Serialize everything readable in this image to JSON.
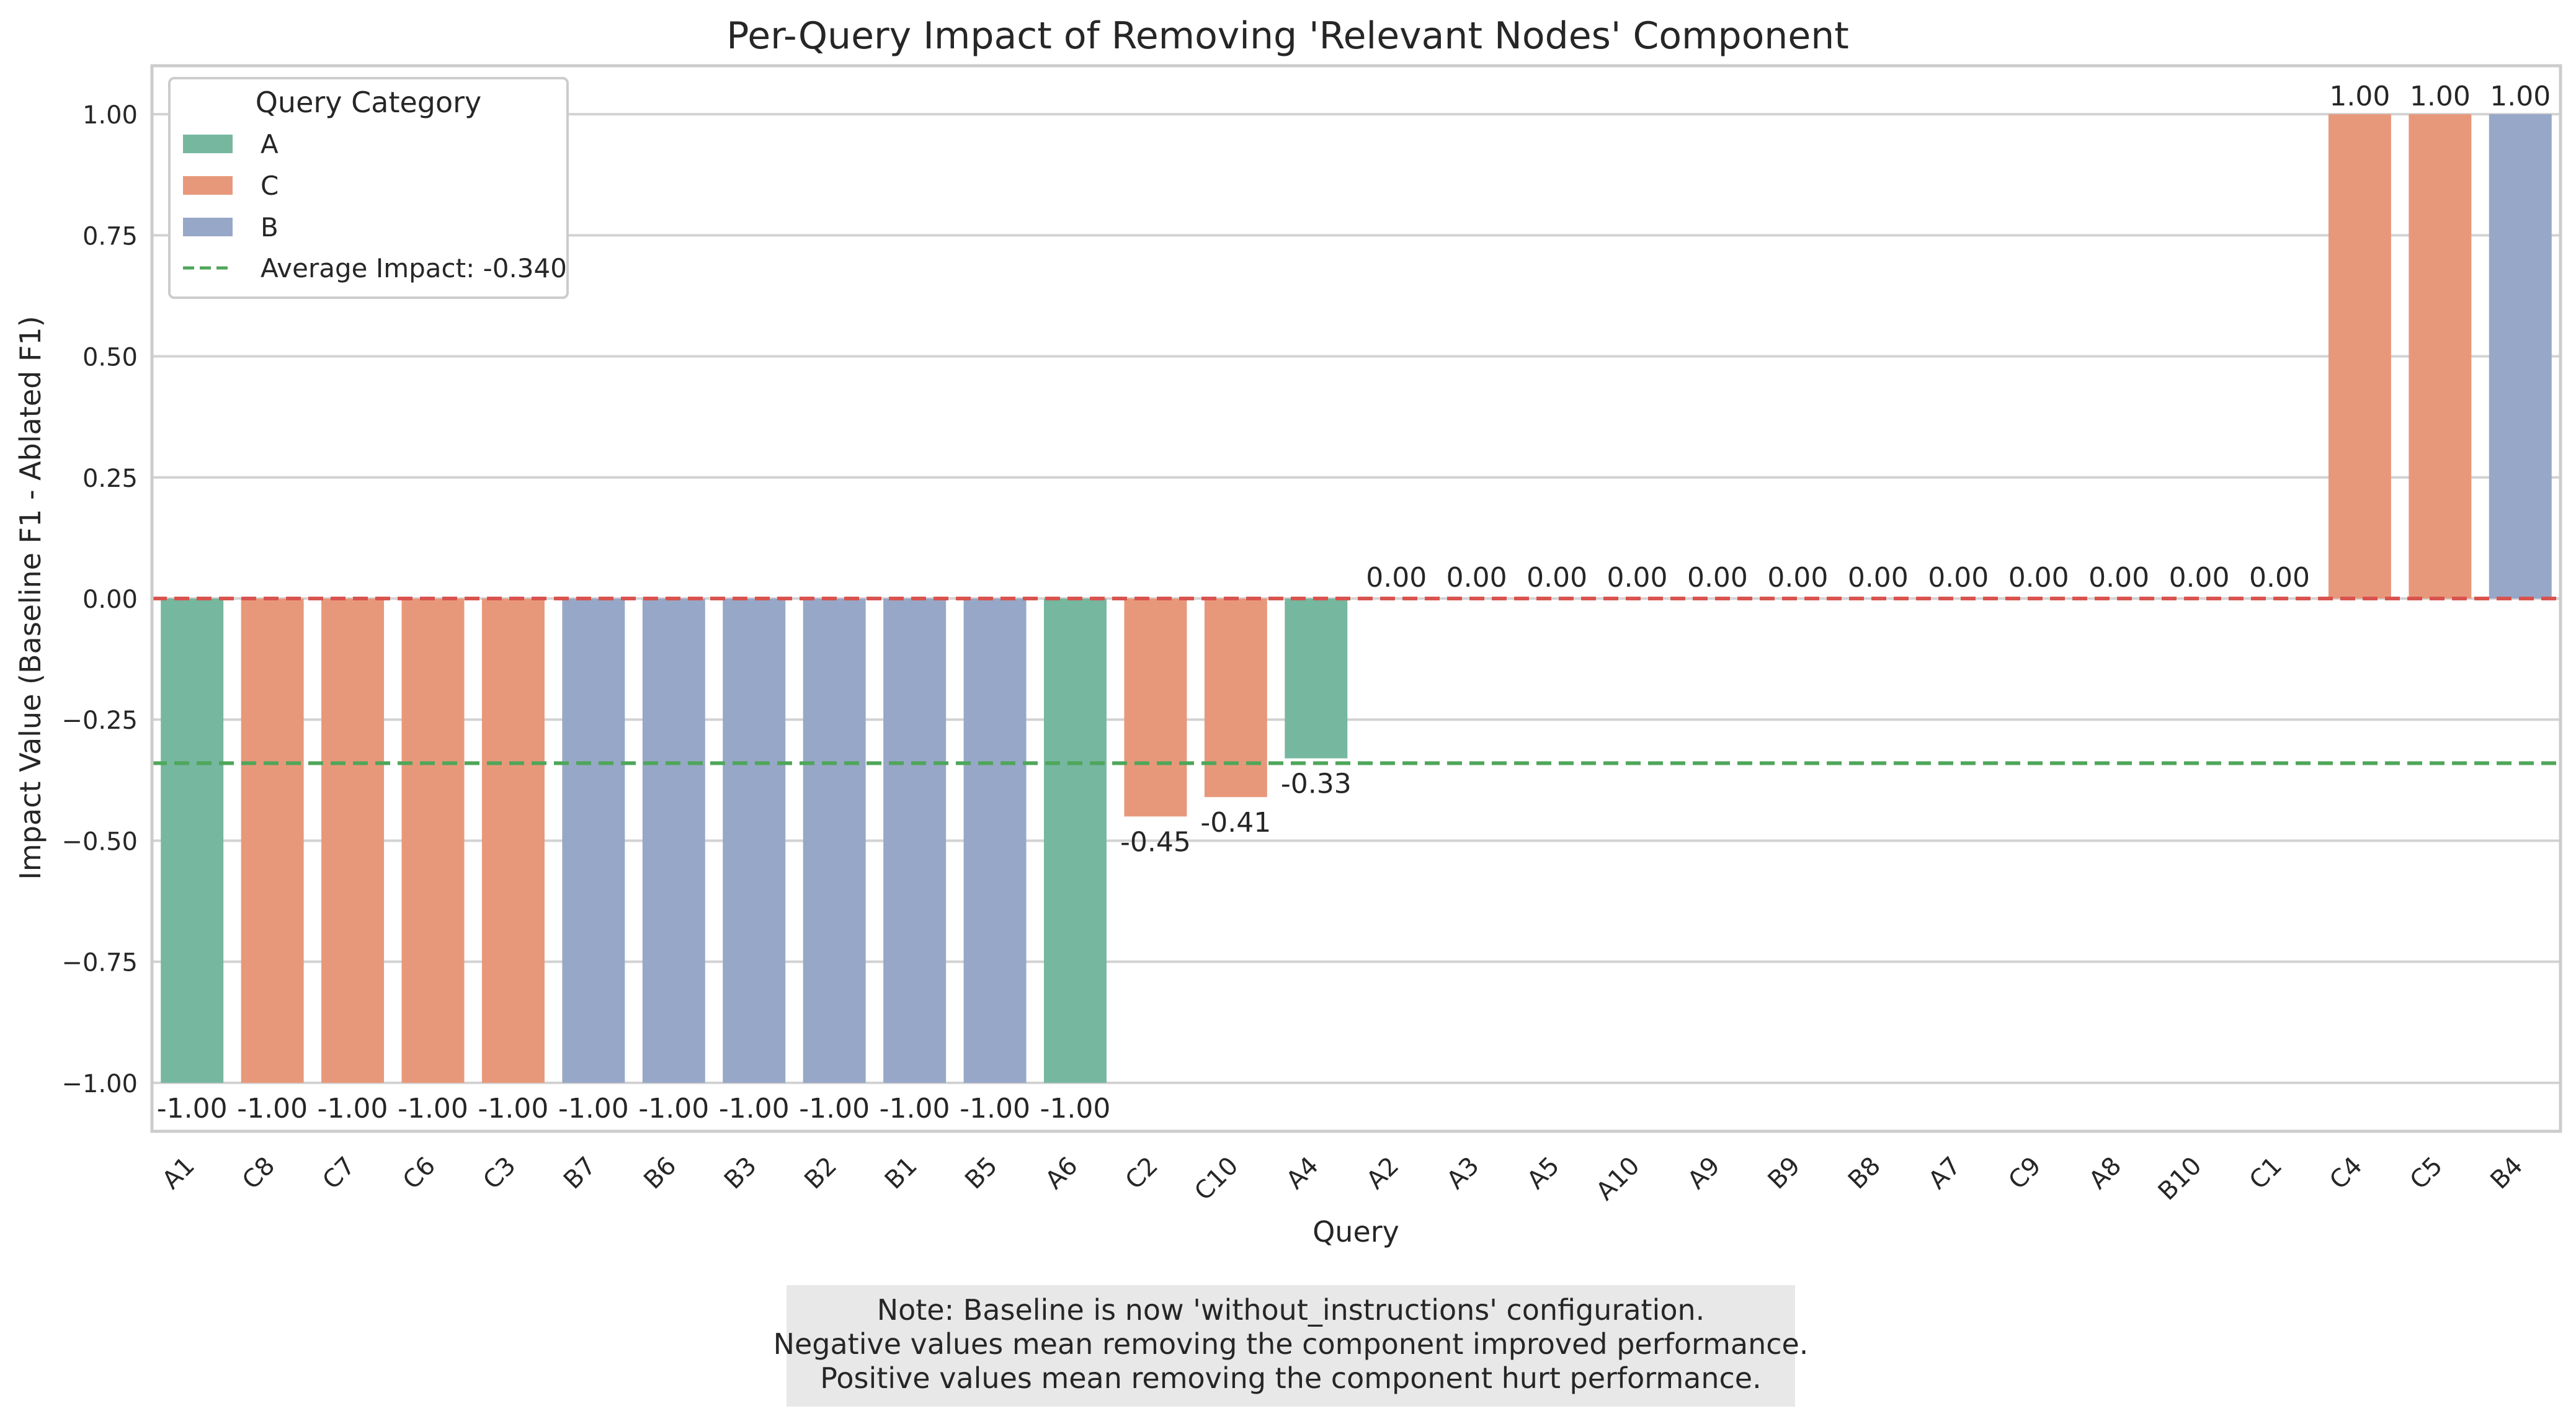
{
  "chart_data": {
    "type": "bar",
    "title": "Per-Query Impact of Removing 'Relevant Nodes' Component",
    "xlabel": "Query",
    "ylabel": "Impact Value (Baseline F1 - Ablated F1)",
    "ylim": [
      -1.1,
      1.1
    ],
    "yticks": [
      1.0,
      0.75,
      0.5,
      0.25,
      0.0,
      -0.25,
      -0.5,
      -0.75,
      -1.0
    ],
    "ytick_labels": [
      "1.00",
      "0.75",
      "0.50",
      "0.25",
      "0.00",
      "−0.25",
      "−0.50",
      "−0.75",
      "−1.00"
    ],
    "grid": true,
    "categories": [
      "A1",
      "C8",
      "C7",
      "C6",
      "C3",
      "B7",
      "B6",
      "B3",
      "B2",
      "B1",
      "B5",
      "A6",
      "C2",
      "C10",
      "A4",
      "A2",
      "A3",
      "A5",
      "A10",
      "A9",
      "B9",
      "B8",
      "A7",
      "C9",
      "A8",
      "B10",
      "C1",
      "C4",
      "C5",
      "B4"
    ],
    "values": [
      -1.0,
      -1.0,
      -1.0,
      -1.0,
      -1.0,
      -1.0,
      -1.0,
      -1.0,
      -1.0,
      -1.0,
      -1.0,
      -1.0,
      -0.45,
      -0.41,
      -0.33,
      0.0,
      0.0,
      0.0,
      0.0,
      0.0,
      0.0,
      0.0,
      0.0,
      0.0,
      0.0,
      0.0,
      0.0,
      1.0,
      1.0,
      1.0
    ],
    "bar_labels": [
      "-1.00",
      "-1.00",
      "-1.00",
      "-1.00",
      "-1.00",
      "-1.00",
      "-1.00",
      "-1.00",
      "-1.00",
      "-1.00",
      "-1.00",
      "-1.00",
      "-0.45",
      "-0.41",
      "-0.33",
      "0.00",
      "0.00",
      "0.00",
      "0.00",
      "0.00",
      "0.00",
      "0.00",
      "0.00",
      "0.00",
      "0.00",
      "0.00",
      "0.00",
      "1.00",
      "1.00",
      "1.00"
    ],
    "groups": [
      "A",
      "C",
      "C",
      "C",
      "C",
      "B",
      "B",
      "B",
      "B",
      "B",
      "B",
      "A",
      "C",
      "C",
      "A",
      "A",
      "A",
      "A",
      "A",
      "A",
      "B",
      "B",
      "A",
      "C",
      "A",
      "B",
      "C",
      "C",
      "C",
      "B"
    ],
    "first_zero_label": "0.00",
    "group_colors": {
      "A": "#76b7a0",
      "C": "#e8987a",
      "B": "#97a7c7"
    },
    "zero_line": {
      "value": 0.0,
      "color": "#d9534f"
    },
    "average_line": {
      "value": -0.34,
      "color": "#4fa65a"
    },
    "legend": {
      "title": "Query Category",
      "position": "top-left",
      "entries": [
        {
          "label": "A",
          "group": "A"
        },
        {
          "label": "C",
          "group": "C"
        },
        {
          "label": "B",
          "group": "B"
        }
      ],
      "average_label": "Average Impact: -0.340"
    },
    "note": [
      "Note: Baseline is now 'without_instructions' configuration.",
      "Negative values mean removing the component improved performance.",
      "Positive values mean removing the component hurt performance."
    ]
  }
}
